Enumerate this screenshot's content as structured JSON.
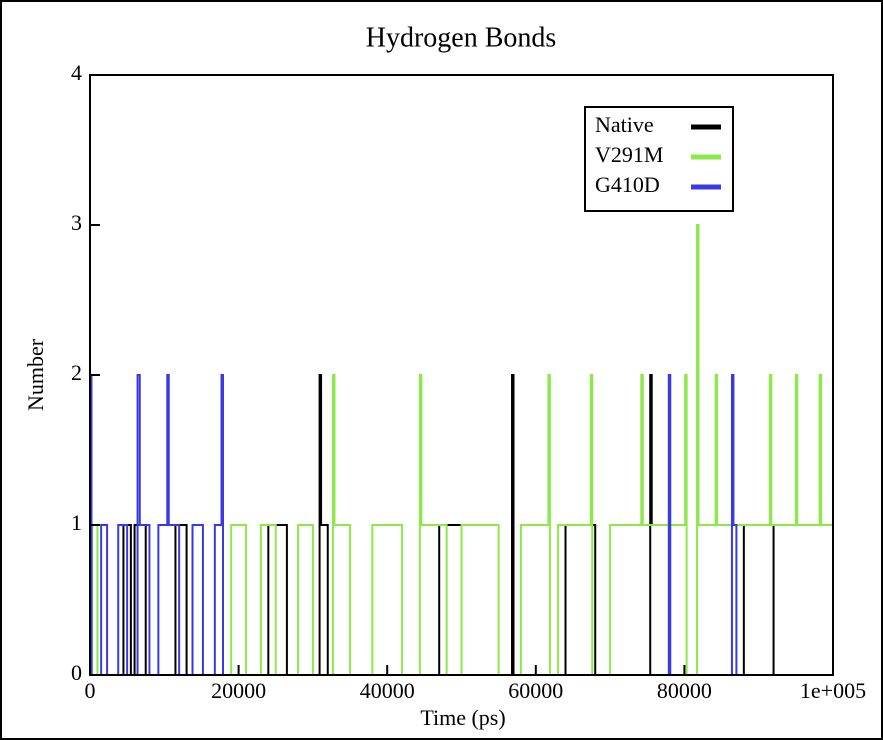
{
  "chart_data": {
    "type": "line",
    "title": "Hydrogen Bonds",
    "x_label": "Time (ps)",
    "y_label": "Number",
    "xlim": [
      0,
      100000
    ],
    "ylim": [
      0,
      4
    ],
    "xticks": [
      0,
      20000,
      40000,
      60000,
      80000,
      {
        "value": 100000,
        "label": "1e+005"
      }
    ],
    "yticks": [
      0,
      1,
      2,
      3,
      4
    ],
    "grid": false,
    "legend": "upper right",
    "series": [
      {
        "name": "Native",
        "color": "#000000",
        "x": [
          0,
          4500,
          4500,
          5500,
          5500,
          6000,
          6000,
          7500,
          7500,
          11500,
          11500,
          13000,
          13000,
          24000,
          24000,
          26500,
          26500,
          30900,
          30900,
          31100,
          31100,
          32000,
          32000,
          47000,
          47000,
          50000,
          50000,
          56800,
          56800,
          57000,
          57000,
          64000,
          64000,
          68000,
          68000,
          75400,
          75400,
          75600,
          75600,
          78000,
          78000,
          88000,
          88000,
          92000,
          92000,
          100000
        ],
        "values": [
          0,
          0,
          1,
          1,
          0,
          0,
          1,
          1,
          0,
          0,
          1,
          1,
          0,
          0,
          1,
          1,
          0,
          0,
          2,
          2,
          1,
          1,
          0,
          0,
          1,
          1,
          0,
          0,
          2,
          2,
          0,
          0,
          1,
          1,
          0,
          0,
          2,
          2,
          1,
          1,
          0,
          0,
          1,
          1,
          0,
          0
        ]
      },
      {
        "name": "V291M",
        "color": "#8ee84c",
        "x": [
          0,
          300,
          300,
          1000,
          1000,
          19000,
          19000,
          21000,
          21000,
          23000,
          23000,
          25000,
          25000,
          28000,
          28000,
          30000,
          30000,
          32700,
          32700,
          32900,
          32900,
          35000,
          35000,
          38000,
          38000,
          42000,
          42000,
          44400,
          44400,
          44600,
          44600,
          48000,
          48000,
          50000,
          50000,
          55000,
          55000,
          58000,
          58000,
          61700,
          61700,
          61900,
          61900,
          63000,
          63000,
          67400,
          67400,
          67600,
          67600,
          70000,
          70000,
          74200,
          74200,
          74400,
          74400,
          80100,
          80100,
          80300,
          80300,
          81700,
          81700,
          81900,
          81900,
          84200,
          84200,
          84400,
          84400,
          91500,
          91500,
          91700,
          91700,
          95000,
          95000,
          95200,
          95200,
          98200,
          98200,
          98400,
          98400,
          100000
        ],
        "values": [
          0,
          0,
          1,
          1,
          0,
          0,
          1,
          1,
          0,
          0,
          1,
          1,
          0,
          0,
          1,
          1,
          0,
          0,
          2,
          2,
          1,
          1,
          0,
          0,
          1,
          1,
          0,
          0,
          2,
          2,
          1,
          1,
          0,
          0,
          1,
          1,
          0,
          0,
          1,
          1,
          2,
          2,
          0,
          0,
          1,
          1,
          2,
          2,
          0,
          0,
          1,
          1,
          2,
          2,
          1,
          1,
          2,
          2,
          0,
          0,
          3,
          3,
          1,
          1,
          2,
          2,
          1,
          1,
          2,
          2,
          1,
          1,
          2,
          2,
          1,
          1,
          2,
          2,
          1,
          1
        ]
      },
      {
        "name": "G410D",
        "color": "#3a3ae0",
        "x": [
          0,
          200,
          200,
          1500,
          1500,
          2300,
          2300,
          3800,
          3800,
          5000,
          5000,
          6400,
          6400,
          6700,
          6700,
          8000,
          8000,
          9200,
          9200,
          10400,
          10400,
          10600,
          10600,
          12000,
          12000,
          13800,
          13800,
          15200,
          15200,
          16800,
          16800,
          17700,
          17700,
          17900,
          17900,
          77900,
          77900,
          78100,
          78100,
          86400,
          86400,
          86600,
          86600,
          87000,
          87000,
          100000
        ],
        "values": [
          2,
          2,
          0,
          0,
          1,
          1,
          0,
          0,
          1,
          1,
          0,
          0,
          2,
          2,
          1,
          1,
          0,
          0,
          1,
          1,
          2,
          2,
          1,
          1,
          0,
          0,
          1,
          1,
          0,
          0,
          1,
          1,
          2,
          2,
          0,
          0,
          2,
          2,
          0,
          0,
          2,
          2,
          1,
          1,
          0,
          0
        ]
      }
    ]
  }
}
